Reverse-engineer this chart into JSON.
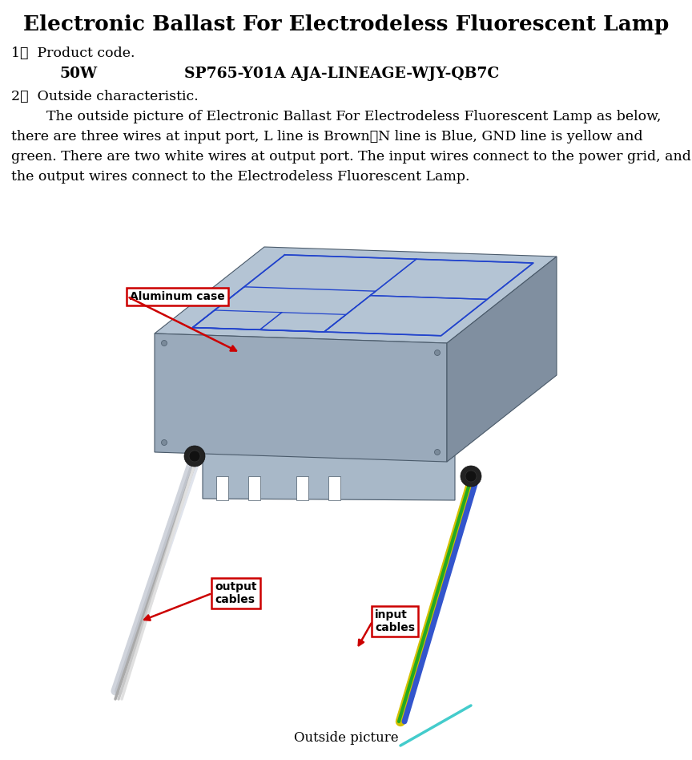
{
  "title": "Electronic Ballast For Electrodeless Fluorescent Lamp",
  "title_fontsize": 19,
  "section1_label": "1．  Product code.",
  "product_row_label": "50W",
  "product_row_code": "SP765-Y01A AJA-LINEAGE-WJY-QB7C",
  "section2_label": "2．  Outside characteristic.",
  "body_line1": "        The outside picture of Electronic Ballast For Electrodeless Fluorescent Lamp as below,",
  "body_line2": "there are three wires at input port, L line is Brown，N line is Blue, GND line is yellow and",
  "body_line3": "green. There are two white wires at output port. The input wires connect to the power grid, and",
  "body_line4": "the output wires connect to the Electrodeless Fluorescent Lamp.",
  "caption": "Outside picture",
  "bg_color": "#ffffff",
  "text_color": "#000000",
  "body_fontsize": 12.5,
  "label_fontsize": 12.5,
  "code_fontsize": 13.5,
  "caption_fontsize": 12,
  "blue_outline": "#2244cc",
  "box_top_color": "#b4c4d4",
  "box_front_color": "#9aaabb",
  "box_right_color": "#808fa0",
  "box_edge_color": "#4a5a6a",
  "grommet_color": "#1a1a1a",
  "label_box_edge": "#cc0000",
  "arrow_color": "#cc0000"
}
